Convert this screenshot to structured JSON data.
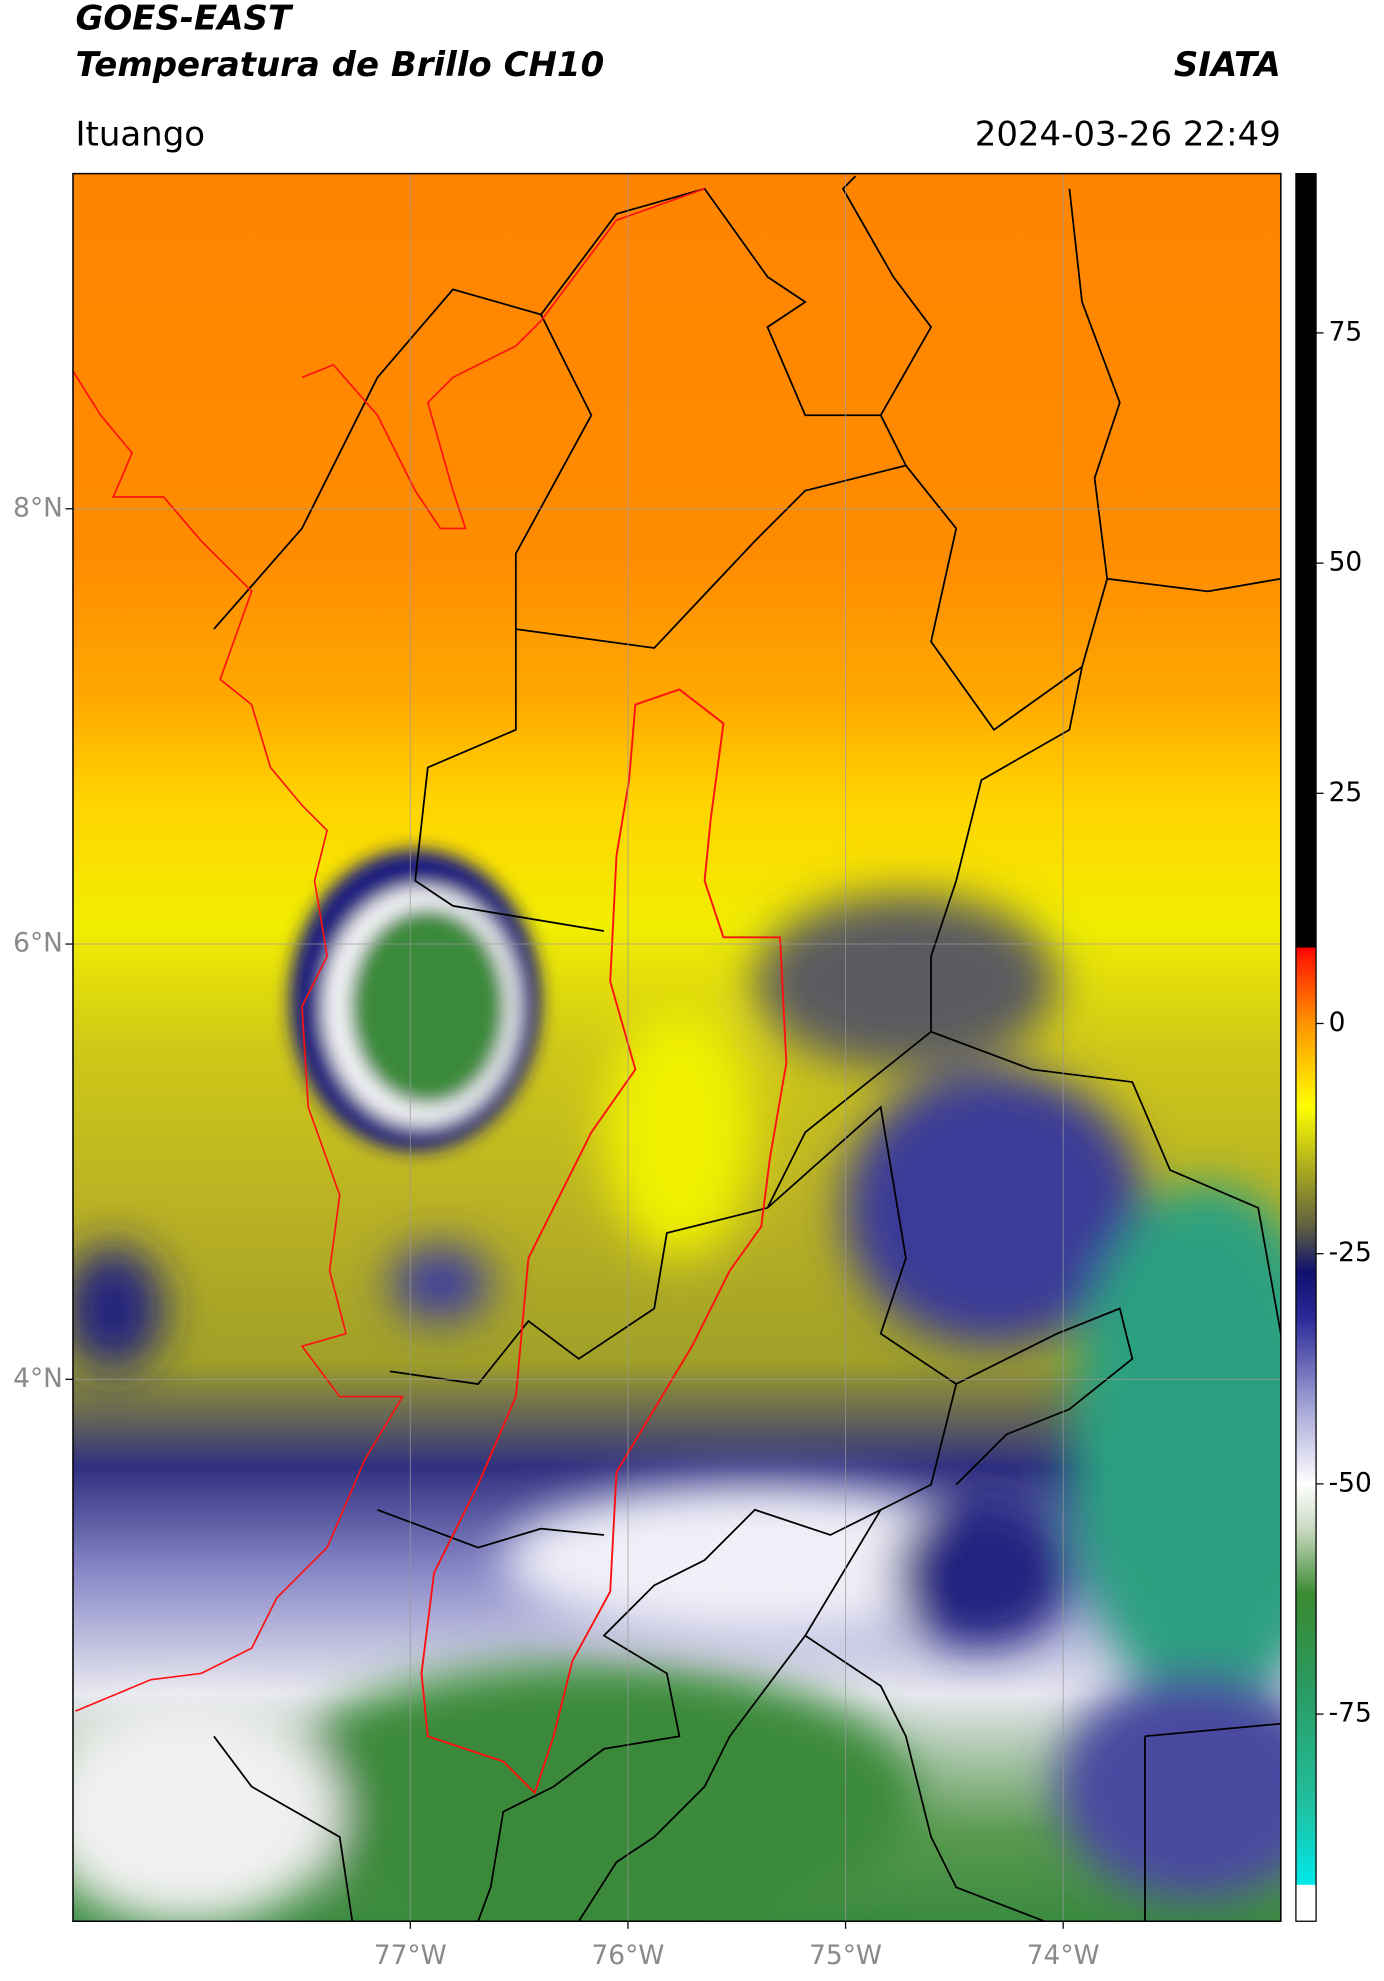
{
  "header": {
    "title": "GOES-EAST",
    "subtitle": "Temperatura de Brillo CH10",
    "source": "SIATA",
    "location": "Ituango",
    "datetime": "2024-03-26 22:49"
  },
  "map": {
    "xlim": [
      -78.55,
      -73.0
    ],
    "ylim": [
      1.51,
      9.54
    ],
    "xticks": [
      {
        "value": -77,
        "label": "77°W"
      },
      {
        "value": -76,
        "label": "76°W"
      },
      {
        "value": -75,
        "label": "75°W"
      },
      {
        "value": -74,
        "label": "74°W"
      }
    ],
    "yticks": [
      {
        "value": 8,
        "label": "8°N"
      },
      {
        "value": 6,
        "label": "6°N"
      },
      {
        "value": 4,
        "label": "4°N"
      }
    ],
    "grid": true
  },
  "colorbar": {
    "lim": [
      -97.5,
      92.3
    ],
    "ticks": [
      75,
      50,
      25,
      0,
      -25,
      -50,
      -75
    ],
    "colormap": [
      [
        -97.5,
        "#ffffff"
      ],
      [
        -93.6,
        "#ffffff"
      ],
      [
        -93.5,
        "#00e8e8"
      ],
      [
        -85,
        "#20c0a0"
      ],
      [
        -72,
        "#2a9a60"
      ],
      [
        -62,
        "#3a8a30"
      ],
      [
        -55,
        "#c8d8c0"
      ],
      [
        -50,
        "#ffffff"
      ],
      [
        -42,
        "#a8a8d8"
      ],
      [
        -32,
        "#2a2a98"
      ],
      [
        -27,
        "#101070"
      ],
      [
        -22,
        "#606040"
      ],
      [
        -16,
        "#a8a820"
      ],
      [
        -9,
        "#ffff00"
      ],
      [
        0,
        "#ff9400"
      ],
      [
        7,
        "#ff2000"
      ],
      [
        8.2,
        "#ff0000"
      ],
      [
        8.3,
        "#000000"
      ],
      [
        92.3,
        "#000000"
      ]
    ]
  }
}
